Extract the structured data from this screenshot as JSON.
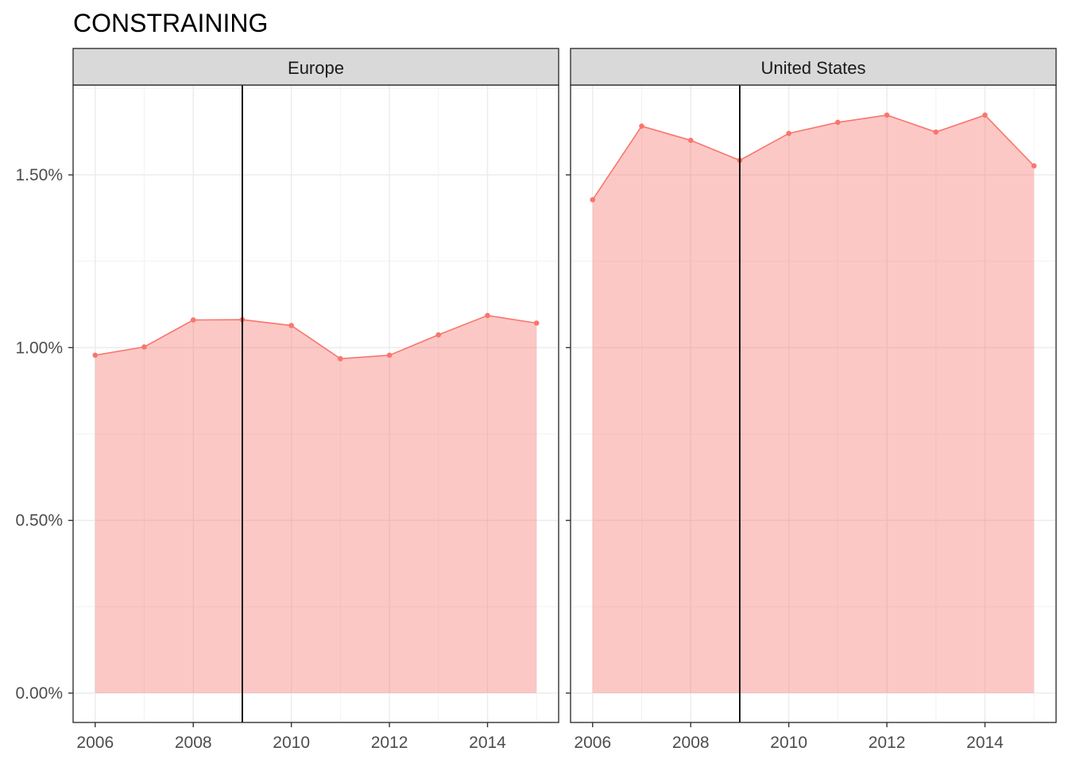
{
  "chart_data": {
    "type": "area",
    "title": "CONSTRAINING",
    "x_ticks": [
      2006,
      2008,
      2010,
      2012,
      2014
    ],
    "y_ticks": [
      0,
      0.5,
      1.0,
      1.5
    ],
    "y_tick_labels": [
      "0.00%",
      "0.50%",
      "1.00%",
      "1.50%"
    ],
    "xlim": [
      2005.55,
      2015.45
    ],
    "ylim": [
      -0.085,
      1.76
    ],
    "reference_line_x": 2009,
    "grid": true,
    "colors": {
      "fill": "#F8766D",
      "line": "#F8766D",
      "reference_line": "#000000",
      "strip_background": "#D9D9D9"
    },
    "facets": [
      {
        "name": "Europe",
        "x": [
          2006,
          2007,
          2008,
          2009,
          2010,
          2011,
          2012,
          2013,
          2014,
          2015
        ],
        "values": [
          0.978,
          1.002,
          1.08,
          1.081,
          1.064,
          0.968,
          0.978,
          1.037,
          1.093,
          1.071
        ]
      },
      {
        "name": "United States",
        "x": [
          2006,
          2007,
          2008,
          2009,
          2010,
          2011,
          2012,
          2013,
          2014,
          2015
        ],
        "values": [
          1.428,
          1.641,
          1.6,
          1.542,
          1.62,
          1.652,
          1.673,
          1.624,
          1.673,
          1.526
        ]
      }
    ]
  }
}
